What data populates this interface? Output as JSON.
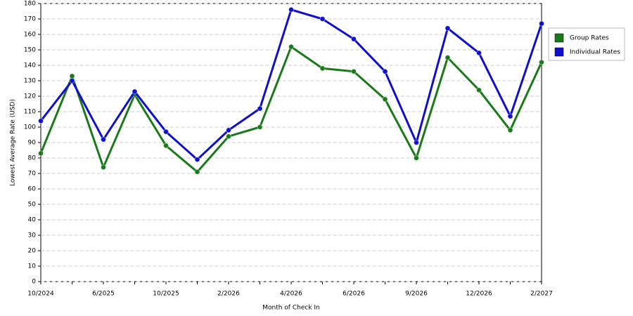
{
  "chart_data": {
    "type": "line",
    "x_label": "Month of Check In",
    "y_label": "Lowest Average Rate (USD)",
    "categories": [
      "10/2024",
      null,
      "6/2025",
      null,
      "10/2025",
      null,
      "2/2026",
      null,
      "4/2026",
      null,
      "6/2026",
      null,
      "9/2026",
      null,
      "12/2026",
      null,
      "2/2027"
    ],
    "series": [
      {
        "name": "Group Rates",
        "color": "#1a7a1a",
        "values": [
          83,
          133,
          74,
          121,
          88,
          71,
          94,
          100,
          152,
          138,
          136,
          118,
          80,
          145,
          124,
          98,
          142
        ]
      },
      {
        "name": "Individual Rates",
        "color": "#1010cc",
        "values": [
          104,
          130,
          92,
          123,
          97,
          79,
          98,
          112,
          176,
          170,
          157,
          136,
          90,
          164,
          148,
          107,
          167
        ]
      }
    ],
    "ylim": [
      0,
      180
    ],
    "yticks": [
      0,
      10,
      20,
      30,
      40,
      50,
      60,
      70,
      80,
      90,
      100,
      110,
      120,
      130,
      140,
      150,
      160,
      170,
      180
    ],
    "grid": true,
    "legend": "right"
  }
}
